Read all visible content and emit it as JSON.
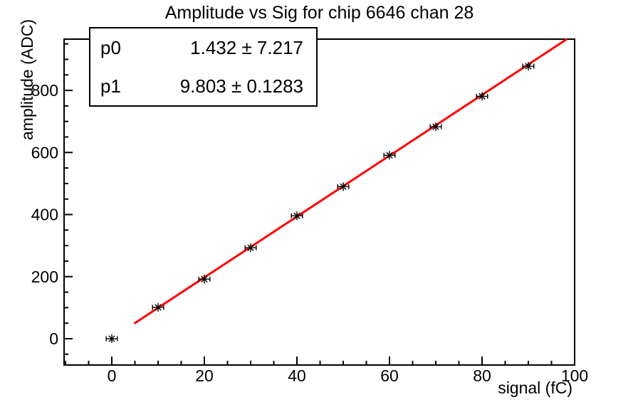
{
  "stats_box": {
    "rows": [
      {
        "name": "p0",
        "value": "1.432 ± 7.217"
      },
      {
        "name": "p1",
        "value": "9.803 ± 0.1283"
      }
    ]
  },
  "chart_data": {
    "type": "scatter",
    "title": "Amplitude vs Sig for chip 6646 chan 28",
    "xlabel": "signal (fC)",
    "ylabel": "amplitude (ADC)",
    "xlim": [
      -10.31,
      100
    ],
    "ylim": [
      -84.8,
      965.2
    ],
    "x_major_ticks": [
      0,
      20,
      40,
      60,
      80,
      100
    ],
    "x_minor_tick_step": 5,
    "y_major_ticks": [
      0,
      200,
      400,
      600,
      800
    ],
    "y_minor_tick_step": 50,
    "grid": false,
    "legend": "none",
    "points": {
      "x": [
        0,
        10,
        20,
        30,
        40,
        50,
        60,
        70,
        80,
        90
      ],
      "y": [
        0,
        101,
        192,
        293,
        396,
        490,
        591,
        683,
        781,
        878
      ],
      "x_error": 1.2,
      "marker": "asterisk-with-error-bars",
      "color": "#000000"
    },
    "fit_line": {
      "type": "linear",
      "p0": 1.432,
      "p0_error": 7.217,
      "p1": 9.803,
      "p1_error": 0.1283,
      "x_draw_range": [
        5,
        98.2
      ],
      "color": "#ff0000"
    },
    "frame_color": "#000000",
    "background": "#ffffff"
  }
}
